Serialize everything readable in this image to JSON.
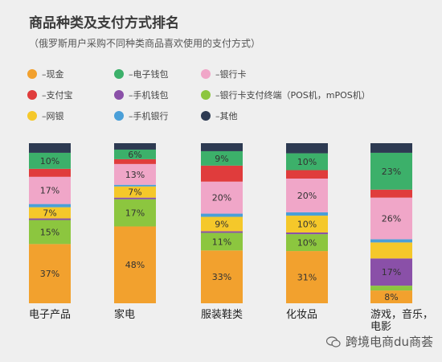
{
  "title": "商品种类及支付方式排名",
  "subtitle": "（俄罗斯用户采购不同种类商品喜欢使用的支付方式）",
  "legend": [
    {
      "label": "现金",
      "color": "#f2a12e"
    },
    {
      "label": "支付宝",
      "color": "#e03c3c"
    },
    {
      "label": "网银",
      "color": "#f5c82a"
    },
    {
      "label": "电子钱包",
      "color": "#3cb06a"
    },
    {
      "label": "手机钱包",
      "color": "#8a50a8"
    },
    {
      "label": "手机银行",
      "color": "#4a9fd8"
    },
    {
      "label": "银行卡",
      "color": "#f0a6c8"
    },
    {
      "label": "银行卡支付终端（POS机，mPOS机）",
      "color": "#8cc63f"
    },
    {
      "label": "其他",
      "color": "#2d3a52"
    }
  ],
  "watermark": "跨境电商du商荟",
  "chart_data": {
    "type": "bar",
    "stacked": true,
    "title": "商品种类及支付方式排名",
    "subtitle": "（俄罗斯用户采购不同种类商品喜欢使用的支付方式）",
    "categories": [
      "电子产品",
      "家电",
      "服装鞋类",
      "化妆品",
      "游戏，音乐，电影"
    ],
    "ylim": [
      0,
      100
    ],
    "series": [
      {
        "name": "现金",
        "color": "#f2a12e",
        "values": [
          37,
          48,
          33,
          31,
          8
        ]
      },
      {
        "name": "银行卡支付终端（POS机，mPOS机）",
        "color": "#8cc63f",
        "values": [
          15,
          17,
          11,
          10,
          3
        ]
      },
      {
        "name": "手机钱包",
        "color": "#8a50a8",
        "values": [
          1,
          1,
          1,
          1,
          17
        ]
      },
      {
        "name": "网银",
        "color": "#f5c82a",
        "values": [
          7,
          7,
          9,
          10,
          10
        ]
      },
      {
        "name": "手机银行",
        "color": "#4a9fd8",
        "values": [
          2,
          1,
          2,
          2,
          2
        ]
      },
      {
        "name": "银行卡",
        "color": "#f0a6c8",
        "values": [
          17,
          13,
          20,
          20,
          26
        ]
      },
      {
        "name": "支付宝",
        "color": "#e03c3c",
        "values": [
          5,
          3,
          10,
          5,
          5
        ]
      },
      {
        "name": "电子钱包",
        "color": "#3cb06a",
        "values": [
          10,
          6,
          9,
          10,
          23
        ]
      },
      {
        "name": "其他",
        "color": "#2d3a52",
        "values": [
          6,
          4,
          5,
          6,
          6
        ]
      }
    ],
    "data_labels": {
      "现金": [
        "37%",
        "48%",
        "33%",
        "31%",
        "8%"
      ],
      "银行卡支付终端（POS机，mPOS机）": [
        "15%",
        "17%",
        "11%",
        "10%",
        ""
      ],
      "手机钱包": [
        "",
        "",
        "",
        "",
        "17%"
      ],
      "网银": [
        "7%",
        "7%",
        "9%",
        "10%",
        ""
      ],
      "银行卡": [
        "17%",
        "13%",
        "20%",
        "20%",
        "26%"
      ],
      "电子钱包": [
        "10%",
        "6%",
        "9%",
        "10%",
        "23%"
      ]
    }
  }
}
